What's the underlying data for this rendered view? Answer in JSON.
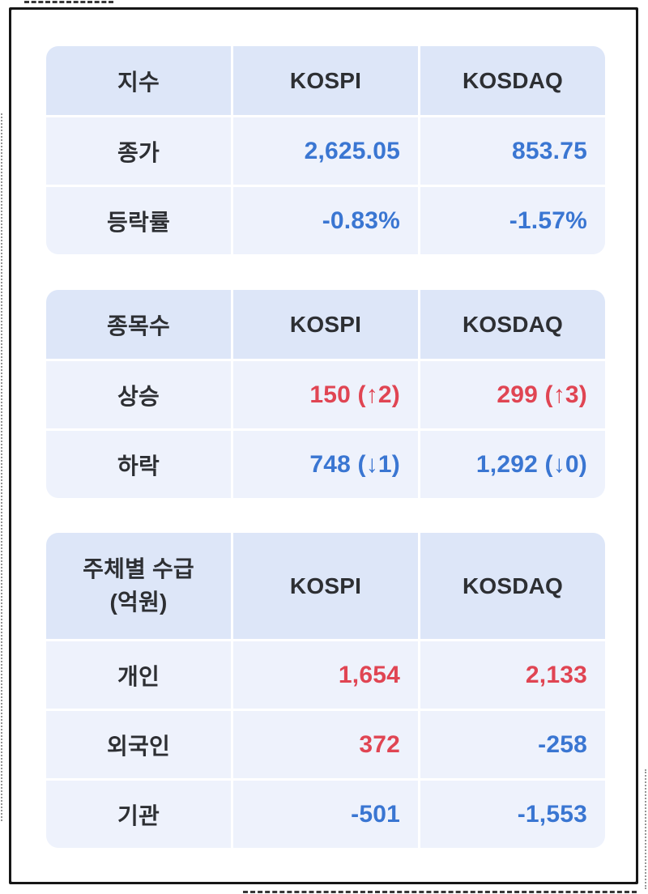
{
  "colors": {
    "red": "#e04553",
    "blue": "#3a76d2",
    "header-bg": "#dde6f8",
    "row-bg": "#eef2fc",
    "text": "#2d2f33"
  },
  "tables": [
    {
      "name": "index-summary",
      "header": {
        "label": "지수",
        "col1": "KOSPI",
        "col2": "KOSDAQ"
      },
      "rows": [
        {
          "label": "종가",
          "cells": [
            {
              "text": "2,625.05",
              "color": "blue"
            },
            {
              "text": "853.75",
              "color": "blue"
            }
          ]
        },
        {
          "label": "등락률",
          "cells": [
            {
              "text": "-0.83%",
              "color": "blue"
            },
            {
              "text": "-1.57%",
              "color": "blue"
            }
          ]
        }
      ]
    },
    {
      "name": "stock-counts",
      "header": {
        "label": "종목수",
        "col1": "KOSPI",
        "col2": "KOSDAQ"
      },
      "rows": [
        {
          "label": "상승",
          "cells": [
            {
              "text": "150 (↑2)",
              "color": "red"
            },
            {
              "text": "299 (↑3)",
              "color": "red"
            }
          ]
        },
        {
          "label": "하락",
          "cells": [
            {
              "text": "748 (↓1)",
              "color": "blue"
            },
            {
              "text": "1,292 (↓0)",
              "color": "blue"
            }
          ]
        }
      ]
    },
    {
      "name": "investor-net-flows",
      "header": {
        "label": "주체별 수급\n(억원)",
        "col1": "KOSPI",
        "col2": "KOSDAQ"
      },
      "rows": [
        {
          "label": "개인",
          "cells": [
            {
              "text": "1,654",
              "color": "red"
            },
            {
              "text": "2,133",
              "color": "red"
            }
          ]
        },
        {
          "label": "외국인",
          "cells": [
            {
              "text": "372",
              "color": "red"
            },
            {
              "text": "-258",
              "color": "blue"
            }
          ]
        },
        {
          "label": "기관",
          "cells": [
            {
              "text": "-501",
              "color": "blue"
            },
            {
              "text": "-1,553",
              "color": "blue"
            }
          ]
        }
      ]
    }
  ],
  "chart_data": [
    {
      "type": "table",
      "title": "지수",
      "columns": [
        "지수",
        "KOSPI",
        "KOSDAQ"
      ],
      "rows": [
        [
          "종가",
          "2,625.05",
          "853.75"
        ],
        [
          "등락률",
          "-0.83%",
          "-1.57%"
        ]
      ]
    },
    {
      "type": "table",
      "title": "종목수",
      "columns": [
        "종목수",
        "KOSPI",
        "KOSDAQ"
      ],
      "rows": [
        [
          "상승",
          "150 (↑2)",
          "299 (↑3)"
        ],
        [
          "하락",
          "748 (↓1)",
          "1,292 (↓0)"
        ]
      ]
    },
    {
      "type": "table",
      "title": "주체별 수급 (억원)",
      "columns": [
        "주체별 수급 (억원)",
        "KOSPI",
        "KOSDAQ"
      ],
      "rows": [
        [
          "개인",
          "1,654",
          "2,133"
        ],
        [
          "외국인",
          "372",
          "-258"
        ],
        [
          "기관",
          "-501",
          "-1,553"
        ]
      ]
    }
  ]
}
